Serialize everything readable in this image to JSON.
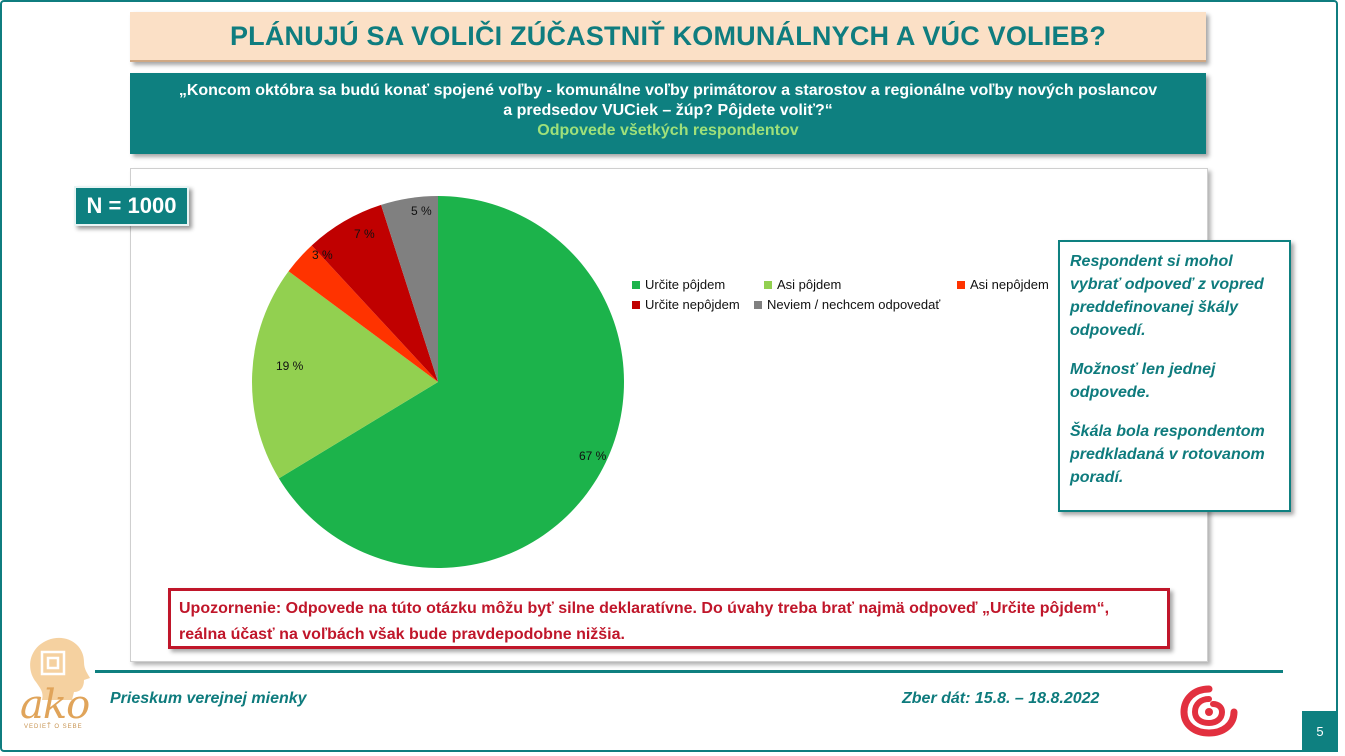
{
  "title": "PLÁNUJÚ SA VOLIČI ZÚČASTNIŤ KOMUNÁLNYCH A VÚC VOLIEB?",
  "question": {
    "line1": "„Koncom októbra sa budú konať spojené voľby - komunálne voľby primátorov a starostov a regionálne voľby nových poslancov",
    "line2": "a predsedov VUCiek – žúp? Pôjdete voliť?“",
    "subtitle": "Odpovede všetkých respondentov"
  },
  "sample": "N = 1000",
  "chart_data": {
    "type": "pie",
    "categories": [
      "Určite pôjdem",
      "Asi pôjdem",
      "Asi nepôjdem",
      "Určite nepôjdem",
      "Neviem / nechcem odpovedať"
    ],
    "values": [
      67,
      19,
      3,
      7,
      5
    ],
    "labels": [
      "67 %",
      "19 %",
      "3 %",
      "7 %",
      "5 %"
    ],
    "colors": [
      "#1cb34b",
      "#92d050",
      "#ff3300",
      "#c00000",
      "#808080"
    ],
    "legend_position": "right"
  },
  "note": {
    "p1": "Respondent si mohol vybrať odpoveď z vopred preddefinovanej škály odpovedí.",
    "p2": "Možnosť len jednej odpovede.",
    "p3": "Škála bola respondentom predkladaná v rotovanom poradí."
  },
  "warning": "Upozornenie: Odpovede na túto otázku môžu byť silne deklaratívne. Do úvahy treba brať najmä odpoveď „Určite pôjdem“, reálna účasť na voľbách však bude pravdepodobne nižšia.",
  "footer": {
    "left": "Prieskum verejnej mienky",
    "right": "Zber dát: 15.8. – 18.8.2022",
    "page": "5"
  },
  "logo": {
    "word": "ako",
    "tagline": "VEDIEŤ O SEBE"
  }
}
